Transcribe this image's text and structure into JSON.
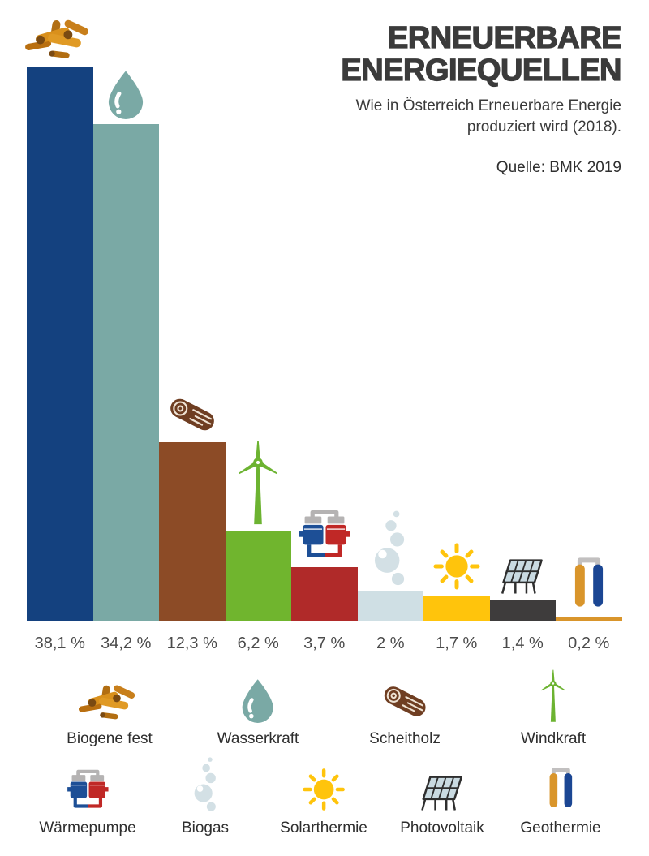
{
  "header": {
    "title": "ERNEUERBARE ENERGIEQUELLEN",
    "subtitle": "Wie in Österreich Erneuerbare Energie produziert wird (2018).",
    "source": "Quelle: BMK 2019"
  },
  "chart_data": {
    "type": "bar",
    "title": "Erneuerbare Energiequellen",
    "subtitle": "Wie in Österreich Erneuerbare Energie produziert wird (2018).",
    "source": "Quelle: BMK 2019",
    "unit": "%",
    "categories": [
      "Biogene fest",
      "Wasserkraft",
      "Scheitholz",
      "Windkraft",
      "Wärmepumpe",
      "Biogas",
      "Solarthermie",
      "Photovoltaik",
      "Geothermie"
    ],
    "values": [
      38.1,
      34.2,
      12.3,
      6.2,
      3.7,
      2,
      1.7,
      1.4,
      0.2
    ],
    "value_labels": [
      "38,1 %",
      "34,2 %",
      "12,3 %",
      "6,2 %",
      "3,7 %",
      "2 %",
      "1,7 %",
      "1,4 %",
      "0,2 %"
    ],
    "bar_colors": [
      "#14417F",
      "#7AA9A5",
      "#8C4B26",
      "#70B52E",
      "#B02A29",
      "#CFDFE4",
      "#FFC40C",
      "#3E3C3C",
      "#D9952B"
    ],
    "icons": [
      "wood-sticks",
      "water-drop",
      "log",
      "wind-turbine",
      "heat-pump",
      "bubbles",
      "sun",
      "solar-panel",
      "geothermal-probes"
    ],
    "ylim": [
      0,
      40
    ],
    "grid": false,
    "legend_position": "bottom"
  },
  "legend": {
    "row1": [
      {
        "label": "Biogene fest",
        "icon": "wood-sticks"
      },
      {
        "label": "Wasserkraft",
        "icon": "water-drop"
      },
      {
        "label": "Scheitholz",
        "icon": "log"
      },
      {
        "label": "Windkraft",
        "icon": "wind-turbine"
      }
    ],
    "row2": [
      {
        "label": "Wärmepumpe",
        "icon": "heat-pump"
      },
      {
        "label": "Biogas",
        "icon": "bubbles"
      },
      {
        "label": "Solarthermie",
        "icon": "sun"
      },
      {
        "label": "Photovoltaik",
        "icon": "solar-panel"
      },
      {
        "label": "Geothermie",
        "icon": "geothermal-probes"
      }
    ]
  }
}
